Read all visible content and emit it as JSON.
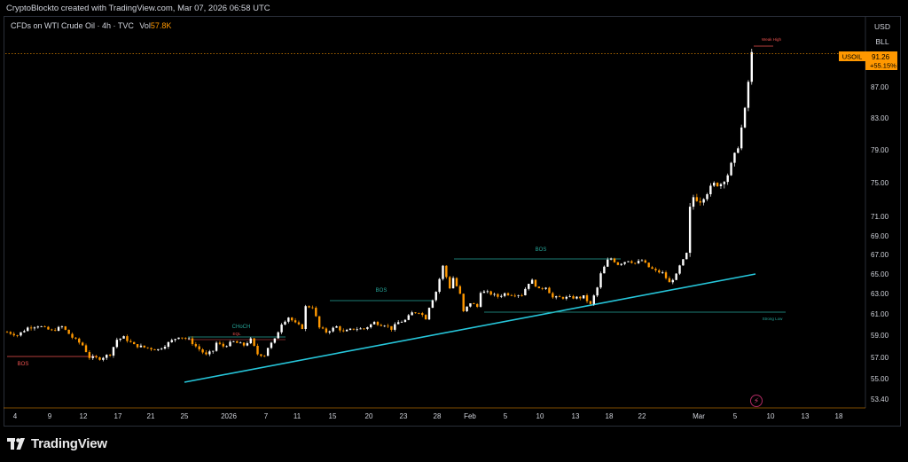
{
  "credit": "CryptoBlockto created with TradingView.com, Mar 07, 2026 06:58 UTC",
  "symbol_info": "CFDs on WTI Crude Oil · 4h · TVC",
  "vol_label": "Vol",
  "vol_value": "57.8K",
  "side_buttons": {
    "currency": "USD",
    "unit": "BLL"
  },
  "footer_logo_text": "TradingView",
  "colors": {
    "up": "#ffffff",
    "down": "#ff9800",
    "trendline": "#26c6da",
    "bos": "#26a69a",
    "bos_red": "#ef5350",
    "price_tag": "#ff9800"
  },
  "chart_data": {
    "type": "candlestick",
    "symbol": "USOIL",
    "timeframe": "4h",
    "last_price": "91.26",
    "change_pct": "+55.15%",
    "y_ticks": [
      "87.00",
      "83.00",
      "79.00",
      "75.00",
      "71.00",
      "69.00",
      "67.00",
      "65.00",
      "63.00",
      "61.00",
      "59.00",
      "57.00",
      "55.00",
      "53.40"
    ],
    "x_ticks": [
      "4",
      "9",
      "12",
      "17",
      "21",
      "25",
      "2026",
      "7",
      "11",
      "15",
      "20",
      "23",
      "28",
      "Feb",
      "5",
      "10",
      "13",
      "18",
      "22",
      "Mar",
      "5",
      "10",
      "13",
      "18"
    ],
    "price_path": [
      [
        0,
        59.3
      ],
      [
        3,
        59.0
      ],
      [
        6,
        59.7
      ],
      [
        9,
        59.9
      ],
      [
        13,
        59.4
      ],
      [
        16,
        59.8
      ],
      [
        19,
        58.8
      ],
      [
        22,
        58.1
      ],
      [
        24,
        57.0
      ],
      [
        27,
        56.9
      ],
      [
        30,
        57.3
      ],
      [
        32,
        58.6
      ],
      [
        34,
        58.8
      ],
      [
        37,
        58.1
      ],
      [
        40,
        57.9
      ],
      [
        44,
        57.7
      ],
      [
        47,
        58.3
      ],
      [
        50,
        58.9
      ],
      [
        53,
        58.6
      ],
      [
        55,
        58.0
      ],
      [
        58,
        57.2
      ],
      [
        60,
        57.6
      ],
      [
        61,
        58.3
      ],
      [
        63,
        58.0
      ],
      [
        66,
        58.4
      ],
      [
        69,
        58.1
      ],
      [
        71,
        58.6
      ],
      [
        73,
        57.3
      ],
      [
        75,
        57.2
      ],
      [
        76,
        57.9
      ],
      [
        78,
        58.6
      ],
      [
        80,
        60.1
      ],
      [
        82,
        60.7
      ],
      [
        84,
        60.1
      ],
      [
        86,
        59.7
      ],
      [
        87,
        61.7
      ],
      [
        89,
        61.7
      ],
      [
        91,
        59.7
      ],
      [
        93,
        59.3
      ],
      [
        96,
        59.8
      ],
      [
        98,
        59.3
      ],
      [
        101,
        59.6
      ],
      [
        104,
        59.6
      ],
      [
        107,
        60.2
      ],
      [
        109,
        60.0
      ],
      [
        110,
        60.0
      ],
      [
        112,
        59.6
      ],
      [
        114,
        60.2
      ],
      [
        116,
        60.4
      ],
      [
        118,
        61.1
      ],
      [
        120,
        61.2
      ],
      [
        122,
        60.6
      ],
      [
        123,
        61.7
      ],
      [
        125,
        63.2
      ],
      [
        127,
        65.8
      ],
      [
        129,
        63.6
      ],
      [
        130,
        64.6
      ],
      [
        132,
        62.9
      ],
      [
        133,
        61.2
      ],
      [
        135,
        62.1
      ],
      [
        137,
        61.7
      ],
      [
        138,
        63.2
      ],
      [
        140,
        63.1
      ],
      [
        143,
        62.7
      ],
      [
        145,
        63.0
      ],
      [
        147,
        62.9
      ],
      [
        150,
        62.9
      ],
      [
        152,
        64.1
      ],
      [
        153,
        64.3
      ],
      [
        155,
        63.4
      ],
      [
        157,
        63.7
      ],
      [
        159,
        62.6
      ],
      [
        161,
        62.6
      ],
      [
        163,
        62.6
      ],
      [
        165,
        62.6
      ],
      [
        167,
        62.6
      ],
      [
        168,
        62.7
      ],
      [
        170,
        61.9
      ],
      [
        172,
        63.6
      ],
      [
        173,
        65.0
      ],
      [
        175,
        66.4
      ],
      [
        176,
        66.6
      ],
      [
        178,
        66.0
      ],
      [
        181,
        66.4
      ],
      [
        183,
        66.1
      ],
      [
        185,
        66.4
      ],
      [
        187,
        65.7
      ],
      [
        189,
        65.3
      ],
      [
        191,
        65.1
      ],
      [
        193,
        64.1
      ],
      [
        195,
        64.9
      ],
      [
        196,
        65.8
      ],
      [
        197,
        66.4
      ],
      [
        198,
        67.1
      ],
      [
        199,
        71.9
      ],
      [
        200,
        73.3
      ],
      [
        202,
        72.9
      ],
      [
        204,
        73.9
      ],
      [
        206,
        74.8
      ],
      [
        208,
        74.9
      ],
      [
        210,
        76.0
      ],
      [
        212,
        78.3
      ],
      [
        213,
        79.5
      ],
      [
        215,
        84.0
      ],
      [
        217,
        91.3
      ]
    ],
    "trendline": {
      "x0": "Dec 25",
      "y0": 55.0,
      "x1": "Mar 8",
      "y1": 65.0
    },
    "annotations": [
      {
        "text": "BOS",
        "level": 57.2,
        "color": "red"
      },
      {
        "text": "CHoCH",
        "level": 58.8,
        "color": "teal"
      },
      {
        "text": "EQL",
        "level": 58.4,
        "color": "red"
      },
      {
        "text": "BOS",
        "level": 62.7,
        "color": "teal"
      },
      {
        "text": "BOS",
        "level": 66.6,
        "color": "teal"
      },
      {
        "text": "Strong Low",
        "level": 61.0,
        "color": "teal"
      },
      {
        "text": "Weak High",
        "level": 92.3,
        "color": "red"
      }
    ]
  }
}
